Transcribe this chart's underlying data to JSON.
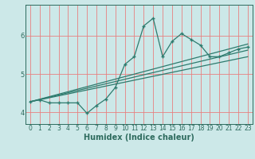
{
  "title": "",
  "xlabel": "Humidex (Indice chaleur)",
  "bg_color": "#cce8e8",
  "grid_color": "#e88080",
  "line_color": "#2e7b6e",
  "xlim": [
    -0.5,
    23.5
  ],
  "ylim": [
    3.7,
    6.8
  ],
  "xticks": [
    0,
    1,
    2,
    3,
    4,
    5,
    6,
    7,
    8,
    9,
    10,
    11,
    12,
    13,
    14,
    15,
    16,
    17,
    18,
    19,
    20,
    21,
    22,
    23
  ],
  "yticks": [
    4,
    5,
    6
  ],
  "main_x": [
    0,
    1,
    2,
    3,
    4,
    5,
    6,
    7,
    8,
    9,
    10,
    11,
    12,
    13,
    14,
    15,
    16,
    17,
    18,
    19,
    20,
    21,
    22,
    23
  ],
  "main_y": [
    4.28,
    4.33,
    4.25,
    4.25,
    4.25,
    4.25,
    3.98,
    4.18,
    4.35,
    4.65,
    5.25,
    5.45,
    6.25,
    6.45,
    5.45,
    5.85,
    6.05,
    5.9,
    5.75,
    5.45,
    5.45,
    5.55,
    5.65,
    5.7
  ],
  "line1_x": [
    0,
    23
  ],
  "line1_y": [
    4.28,
    5.62
  ],
  "line2_x": [
    0,
    23
  ],
  "line2_y": [
    4.28,
    5.45
  ],
  "line3_x": [
    0,
    23
  ],
  "line3_y": [
    4.28,
    5.78
  ],
  "font_color": "#2e6b5e",
  "tick_fontsize": 5.5,
  "xlabel_fontsize": 7
}
